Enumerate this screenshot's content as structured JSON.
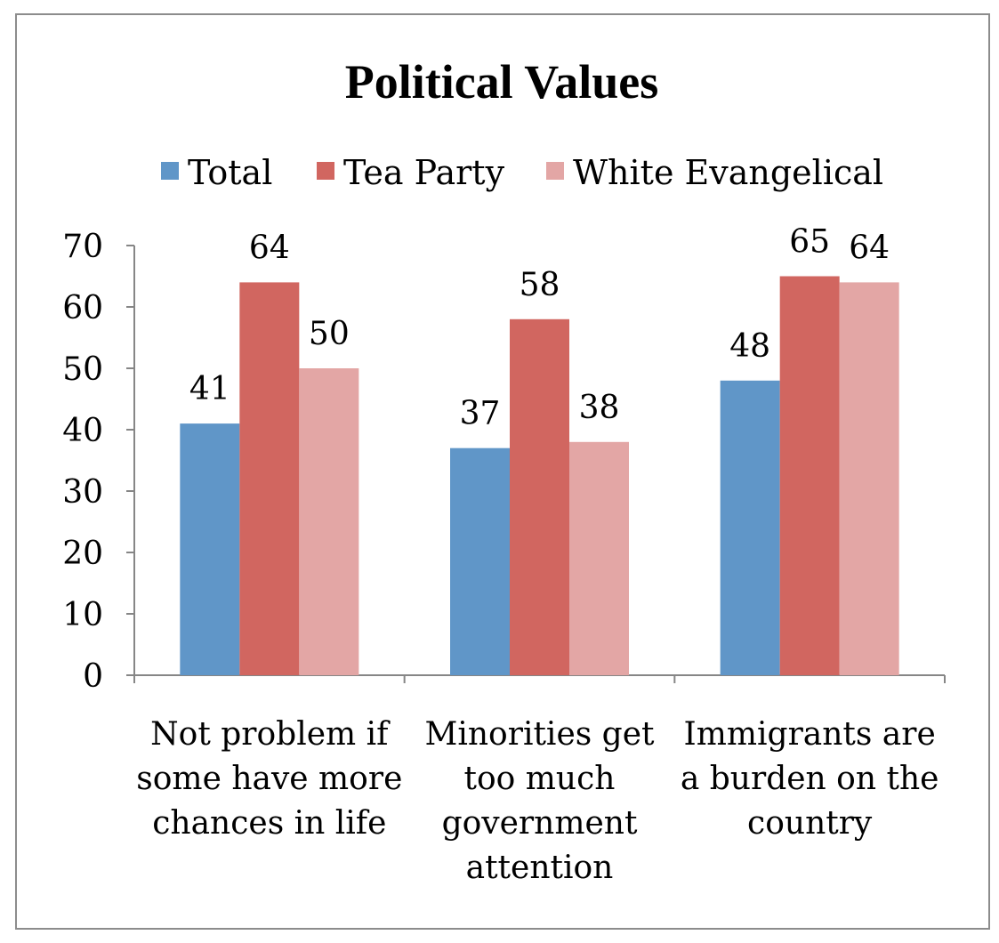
{
  "chart_data": {
    "type": "bar",
    "title": "Political Values",
    "categories": [
      [
        "Not problem if",
        "some have more",
        "chances in life"
      ],
      [
        "Minorities get",
        "too much",
        "government",
        "attention"
      ],
      [
        "Immigrants are",
        "a burden on the",
        "country"
      ]
    ],
    "series": [
      {
        "name": "Total",
        "color": "#6096c8",
        "values": [
          41,
          37,
          48
        ]
      },
      {
        "name": "Tea Party",
        "color": "#d16660",
        "values": [
          64,
          58,
          65
        ]
      },
      {
        "name": "White Evangelical",
        "color": "#e3a6a5",
        "values": [
          50,
          38,
          64
        ]
      }
    ],
    "ylim": [
      0,
      70
    ],
    "yticks": [
      0,
      10,
      20,
      30,
      40,
      50,
      60,
      70
    ],
    "grid": false,
    "legend": "top",
    "data_labels": true
  }
}
